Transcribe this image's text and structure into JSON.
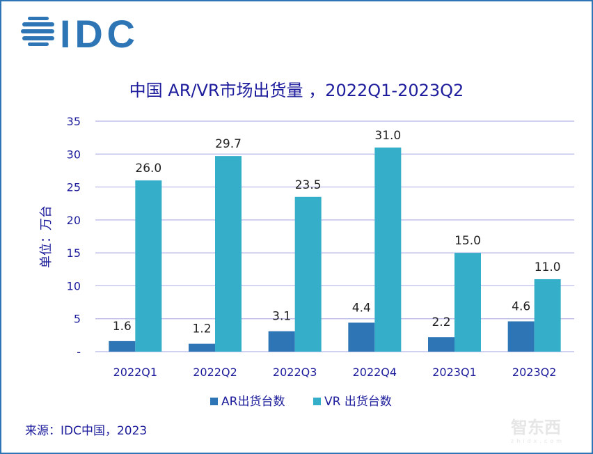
{
  "logo_text": "IDC",
  "chart_data": {
    "type": "bar",
    "title": "中国 AR/VR市场出货量 ，2022Q1-2023Q2",
    "ylabel": "单位：万台",
    "xlabel": "",
    "categories": [
      "2022Q1",
      "2022Q2",
      "2022Q3",
      "2022Q4",
      "2023Q1",
      "2023Q2"
    ],
    "series": [
      {
        "name": "AR出货台数",
        "color": "#2E75B6",
        "values": [
          1.6,
          1.2,
          3.1,
          4.4,
          2.2,
          4.6
        ],
        "labels": [
          "1.6",
          "1.2",
          "3.1",
          "4.4",
          "2.2",
          "4.6"
        ]
      },
      {
        "name": "VR 出货台数",
        "color": "#35AECA",
        "values": [
          26.0,
          29.7,
          23.5,
          31.0,
          15.0,
          11.0
        ],
        "labels": [
          "26.0",
          "29.7",
          "23.5",
          "31.0",
          "15.0",
          "11.0"
        ]
      }
    ],
    "ylim": [
      0,
      35
    ],
    "yticks": [
      0,
      5,
      10,
      15,
      20,
      25,
      30,
      35
    ],
    "ytick_labels": [
      "-",
      "5",
      "10",
      "15",
      "20",
      "25",
      "30",
      "35"
    ],
    "grid": true,
    "legend": "bottom"
  },
  "source": "来源：IDC中国，2023",
  "watermark": "智东西",
  "watermark_sub": "zhidx.com"
}
